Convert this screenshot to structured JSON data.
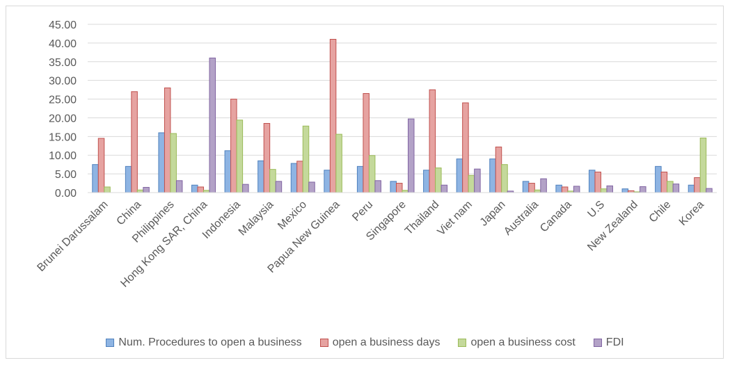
{
  "chart_data": {
    "type": "bar",
    "title": "",
    "xlabel": "",
    "ylabel": "",
    "ylim": [
      0,
      45
    ],
    "yticks": [
      "0.00",
      "5.00",
      "10.00",
      "15.00",
      "20.00",
      "25.00",
      "30.00",
      "35.00",
      "40.00",
      "45.00"
    ],
    "grid": true,
    "legend_position": "bottom",
    "categories": [
      "Brunei Darussalam",
      "China",
      "Philippines",
      "Hong Kong SAR, China",
      "Indonesia",
      "Malaysia",
      "Mexico",
      "Papua New Guinea",
      "Peru",
      "Singapore",
      "Thailand",
      "Viet nam",
      "Japan",
      "Australia",
      "Canada",
      "U.S",
      "New Zealand",
      "Chile",
      "Korea"
    ],
    "series": [
      {
        "name": "Num. Procedures to open a business",
        "color": "#8eb4e3",
        "stroke": "#4f81bd",
        "values": [
          7.5,
          7,
          16,
          2,
          11.2,
          8.5,
          7.8,
          6,
          7,
          3,
          6,
          9,
          9,
          3,
          2,
          6,
          1,
          7,
          2
        ]
      },
      {
        "name": "open a business days",
        "color": "#e6a3a1",
        "stroke": "#c0504d",
        "values": [
          14.5,
          27,
          28,
          1.5,
          25,
          18.5,
          8.4,
          41,
          26.5,
          2.5,
          27.5,
          24,
          12.2,
          2.5,
          1.5,
          5.5,
          0.5,
          5.5,
          4
        ]
      },
      {
        "name": "open a business cost",
        "color": "#c4d99b",
        "stroke": "#9bbb59",
        "values": [
          1.5,
          0.7,
          15.8,
          0.6,
          19.4,
          6.2,
          17.8,
          15.6,
          9.9,
          0.6,
          6.6,
          4.6,
          7.5,
          0.7,
          0.4,
          1,
          0.2,
          3,
          14.6
        ]
      },
      {
        "name": "FDI",
        "color": "#b3a2c7",
        "stroke": "#8064a2",
        "values": [
          0,
          1.4,
          3.2,
          36,
          2.2,
          3,
          2.8,
          0,
          3.2,
          19.7,
          2,
          6.3,
          0.4,
          3.7,
          1.7,
          1.8,
          1.6,
          2.3,
          1.1
        ]
      }
    ]
  }
}
